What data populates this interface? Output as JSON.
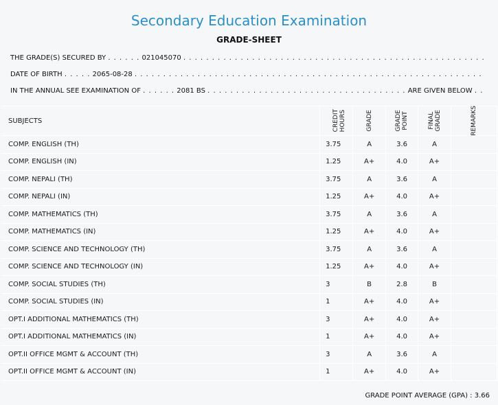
{
  "header": {
    "title": "Secondary Education Examination",
    "subtitle": "GRADE-SHEET"
  },
  "info": {
    "secured_label": "THE GRADE(S) SECURED BY",
    "secured_dots_lead": ". . . . . .",
    "symbol_no": "021045070",
    "secured_dots_trail": ". . . . . . . . . . . . . . . . . . . . . . . . . . . . . . . . . . . . . . . . . . . . . . . . . . . . . . . . . . . . . . . . . . . . . . . . . . . . . .",
    "dob_label": "DATE OF BIRTH",
    "dob_dots_lead": ". . . . .",
    "dob_value": "2065-08-28",
    "dob_dots_trail": ". . . . . . . . . . . . . . . . . . . . . . . . . . . . . . . . . . . . . . . . . . . . . . . . . . . . . . . . . . . . . . . . . . . . . . . . . . . . . . . . . . .",
    "exam_label": "IN THE ANNUAL SEE EXAMINATION OF",
    "exam_dots_lead": ". . . . . .",
    "exam_year": "2081 BS",
    "exam_dots_trail": ". . . . . . . . . . . . . . . . . . . . . . . . . . . . . . . . . . .",
    "exam_suffix": "ARE GIVEN BELOW",
    "exam_dots_end": ". . ."
  },
  "table": {
    "headers": {
      "subjects": "SUBJECTS",
      "credit_hours": "CREDIT\nHOURS",
      "grade": "GRADE",
      "grade_point": "GRADE\nPOINT",
      "final_grade": "FINAL\nGRADE",
      "remarks": "REMARKS"
    },
    "rows": [
      {
        "subject": "COMP. ENGLISH (TH)",
        "credit": "3.75",
        "grade": "A",
        "point": "3.6",
        "final": "A",
        "remarks": ""
      },
      {
        "subject": "COMP. ENGLISH (IN)",
        "credit": "1.25",
        "grade": "A+",
        "point": "4.0",
        "final": "A+",
        "remarks": ""
      },
      {
        "subject": "COMP. NEPALI (TH)",
        "credit": "3.75",
        "grade": "A",
        "point": "3.6",
        "final": "A",
        "remarks": ""
      },
      {
        "subject": "COMP. NEPALI (IN)",
        "credit": "1.25",
        "grade": "A+",
        "point": "4.0",
        "final": "A+",
        "remarks": ""
      },
      {
        "subject": "COMP. MATHEMATICS (TH)",
        "credit": "3.75",
        "grade": "A",
        "point": "3.6",
        "final": "A",
        "remarks": ""
      },
      {
        "subject": "COMP. MATHEMATICS (IN)",
        "credit": "1.25",
        "grade": "A+",
        "point": "4.0",
        "final": "A+",
        "remarks": ""
      },
      {
        "subject": "COMP. SCIENCE AND TECHNOLOGY (TH)",
        "credit": "3.75",
        "grade": "A",
        "point": "3.6",
        "final": "A",
        "remarks": ""
      },
      {
        "subject": "COMP. SCIENCE AND TECHNOLOGY (IN)",
        "credit": "1.25",
        "grade": "A+",
        "point": "4.0",
        "final": "A+",
        "remarks": ""
      },
      {
        "subject": "COMP. SOCIAL STUDIES (TH)",
        "credit": "3",
        "grade": "B",
        "point": "2.8",
        "final": "B",
        "remarks": ""
      },
      {
        "subject": "COMP. SOCIAL STUDIES (IN)",
        "credit": "1",
        "grade": "A+",
        "point": "4.0",
        "final": "A+",
        "remarks": ""
      },
      {
        "subject": "OPT.I ADDITIONAL MATHEMATICS (TH)",
        "credit": "3",
        "grade": "A+",
        "point": "4.0",
        "final": "A+",
        "remarks": ""
      },
      {
        "subject": "OPT.I ADDITIONAL MATHEMATICS (IN)",
        "credit": "1",
        "grade": "A+",
        "point": "4.0",
        "final": "A+",
        "remarks": ""
      },
      {
        "subject": "OPT.II OFFICE MGMT & ACCOUNT (TH)",
        "credit": "3",
        "grade": "A",
        "point": "3.6",
        "final": "A",
        "remarks": ""
      },
      {
        "subject": "OPT.II OFFICE MGMT & ACCOUNT (IN)",
        "credit": "1",
        "grade": "A+",
        "point": "4.0",
        "final": "A+",
        "remarks": ""
      }
    ]
  },
  "footer": {
    "gpa_label": "GRADE POINT AVERAGE (GPA) :",
    "gpa_value": "3.66"
  }
}
